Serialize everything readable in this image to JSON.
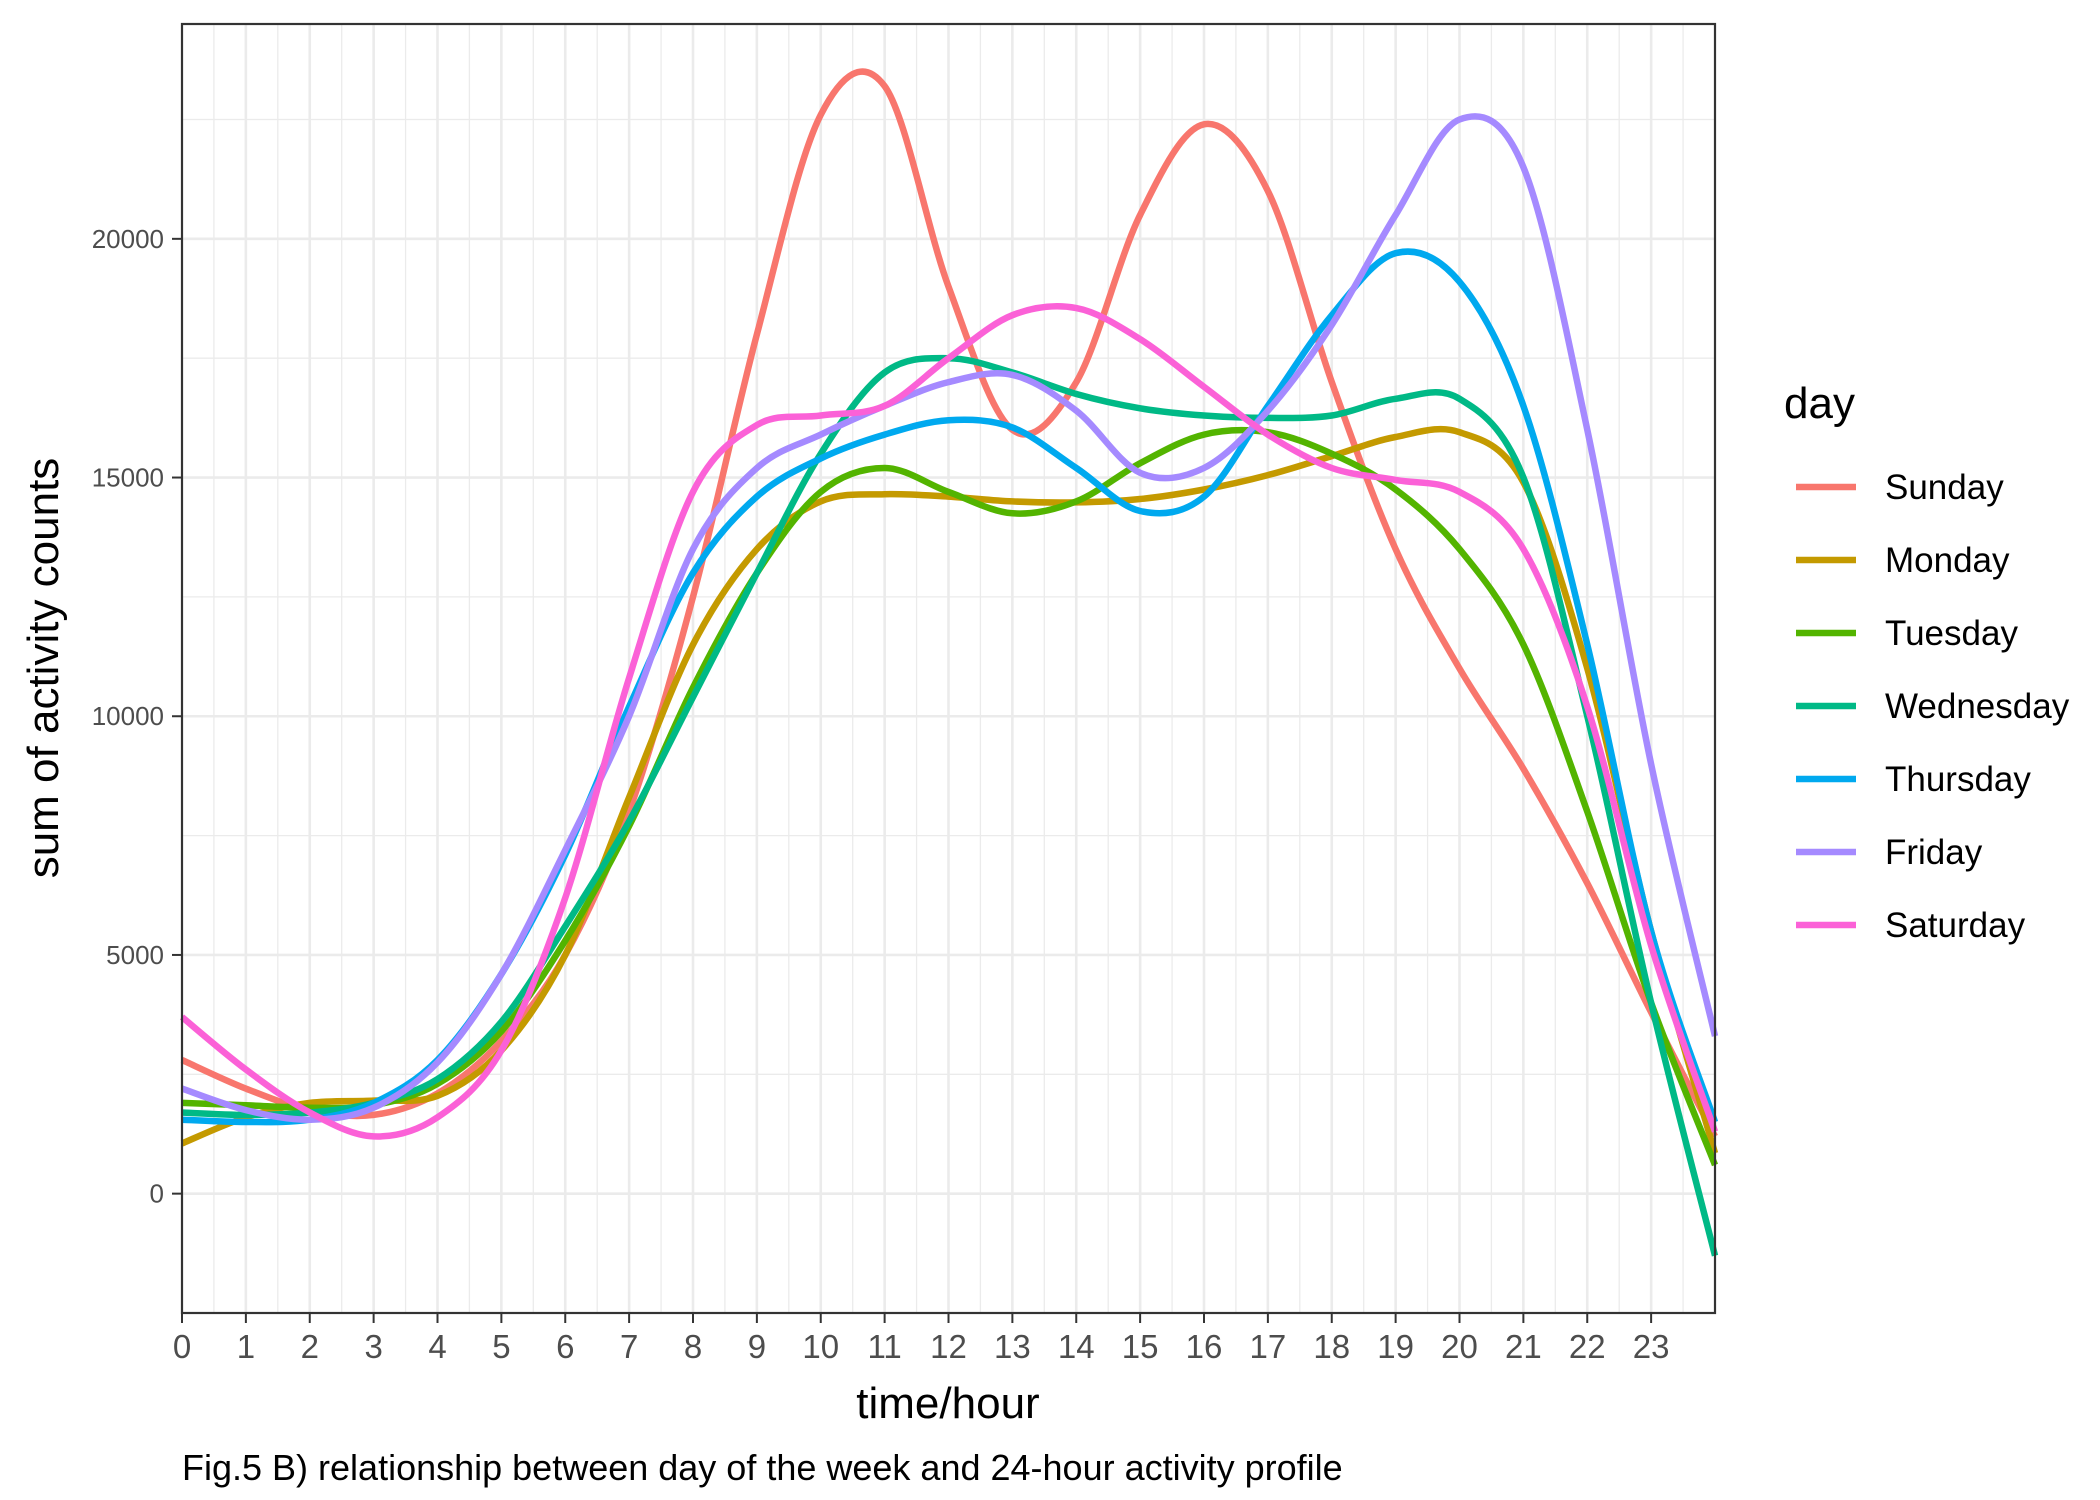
{
  "chart_data": {
    "type": "line",
    "title": "",
    "caption": "Fig.5 B) relationship between day of the week and 24-hour activity profile",
    "xlabel": "time/hour",
    "ylabel": "sum of activity counts",
    "xlim": [
      0,
      24
    ],
    "ylim": [
      -2500,
      24500
    ],
    "x_ticks": [
      0,
      1,
      2,
      3,
      4,
      5,
      6,
      7,
      8,
      9,
      10,
      11,
      12,
      13,
      14,
      15,
      16,
      17,
      18,
      19,
      20,
      21,
      22,
      23
    ],
    "y_ticks": [
      0,
      5000,
      10000,
      15000,
      20000
    ],
    "grid": true,
    "legend_title": "day",
    "legend_position": "right",
    "x": [
      0,
      1,
      2,
      3,
      4,
      5,
      6,
      7,
      8,
      9,
      10,
      11,
      12,
      13,
      14,
      15,
      16,
      17,
      18,
      19,
      20,
      21,
      22,
      23,
      24
    ],
    "series": [
      {
        "name": "Sunday",
        "color": "#F8766D",
        "values": [
          2800,
          2200,
          1750,
          1650,
          2100,
          3200,
          5000,
          8000,
          12500,
          18000,
          22600,
          23200,
          19000,
          16000,
          17000,
          20500,
          22400,
          21000,
          17000,
          13500,
          11000,
          8900,
          6500,
          3800,
          1200
        ]
      },
      {
        "name": "Monday",
        "color": "#C49A00",
        "values": [
          1050,
          1600,
          1900,
          1950,
          2050,
          3000,
          5000,
          8300,
          11500,
          13500,
          14500,
          14650,
          14600,
          14500,
          14480,
          14550,
          14750,
          15050,
          15450,
          15850,
          15950,
          14900,
          11000,
          5500,
          850
        ]
      },
      {
        "name": "Tuesday",
        "color": "#53B400",
        "values": [
          1900,
          1850,
          1800,
          1850,
          2300,
          3400,
          5300,
          7700,
          10600,
          13000,
          14700,
          15200,
          14700,
          14250,
          14500,
          15300,
          15900,
          15950,
          15500,
          14750,
          13500,
          11500,
          8000,
          4000,
          600
        ]
      },
      {
        "name": "Wednesday",
        "color": "#00B986",
        "values": [
          1700,
          1650,
          1700,
          1900,
          2400,
          3600,
          5600,
          7800,
          10400,
          13000,
          15500,
          17200,
          17500,
          17200,
          16750,
          16450,
          16300,
          16250,
          16300,
          16650,
          16650,
          15000,
          10000,
          4000,
          -1300
        ]
      },
      {
        "name": "Thursday",
        "color": "#00A9EF",
        "values": [
          1550,
          1500,
          1550,
          1900,
          2800,
          4600,
          7100,
          10200,
          13000,
          14600,
          15400,
          15900,
          16200,
          16050,
          15200,
          14300,
          14600,
          16500,
          18400,
          19700,
          19100,
          16500,
          11500,
          5500,
          1500
        ]
      },
      {
        "name": "Friday",
        "color": "#A58AFF",
        "values": [
          2200,
          1750,
          1550,
          1800,
          2750,
          4600,
          7200,
          10000,
          13500,
          15200,
          15900,
          16500,
          17000,
          17150,
          16400,
          15100,
          15200,
          16400,
          18200,
          20500,
          22500,
          21500,
          16000,
          9000,
          3300
        ]
      },
      {
        "name": "Saturday",
        "color": "#FB61D7",
        "values": [
          3700,
          2600,
          1700,
          1200,
          1600,
          3000,
          6200,
          10800,
          14700,
          16100,
          16300,
          16500,
          17500,
          18400,
          18550,
          17900,
          16900,
          15900,
          15200,
          14950,
          14700,
          13500,
          10200,
          5200,
          1300
        ]
      }
    ]
  }
}
